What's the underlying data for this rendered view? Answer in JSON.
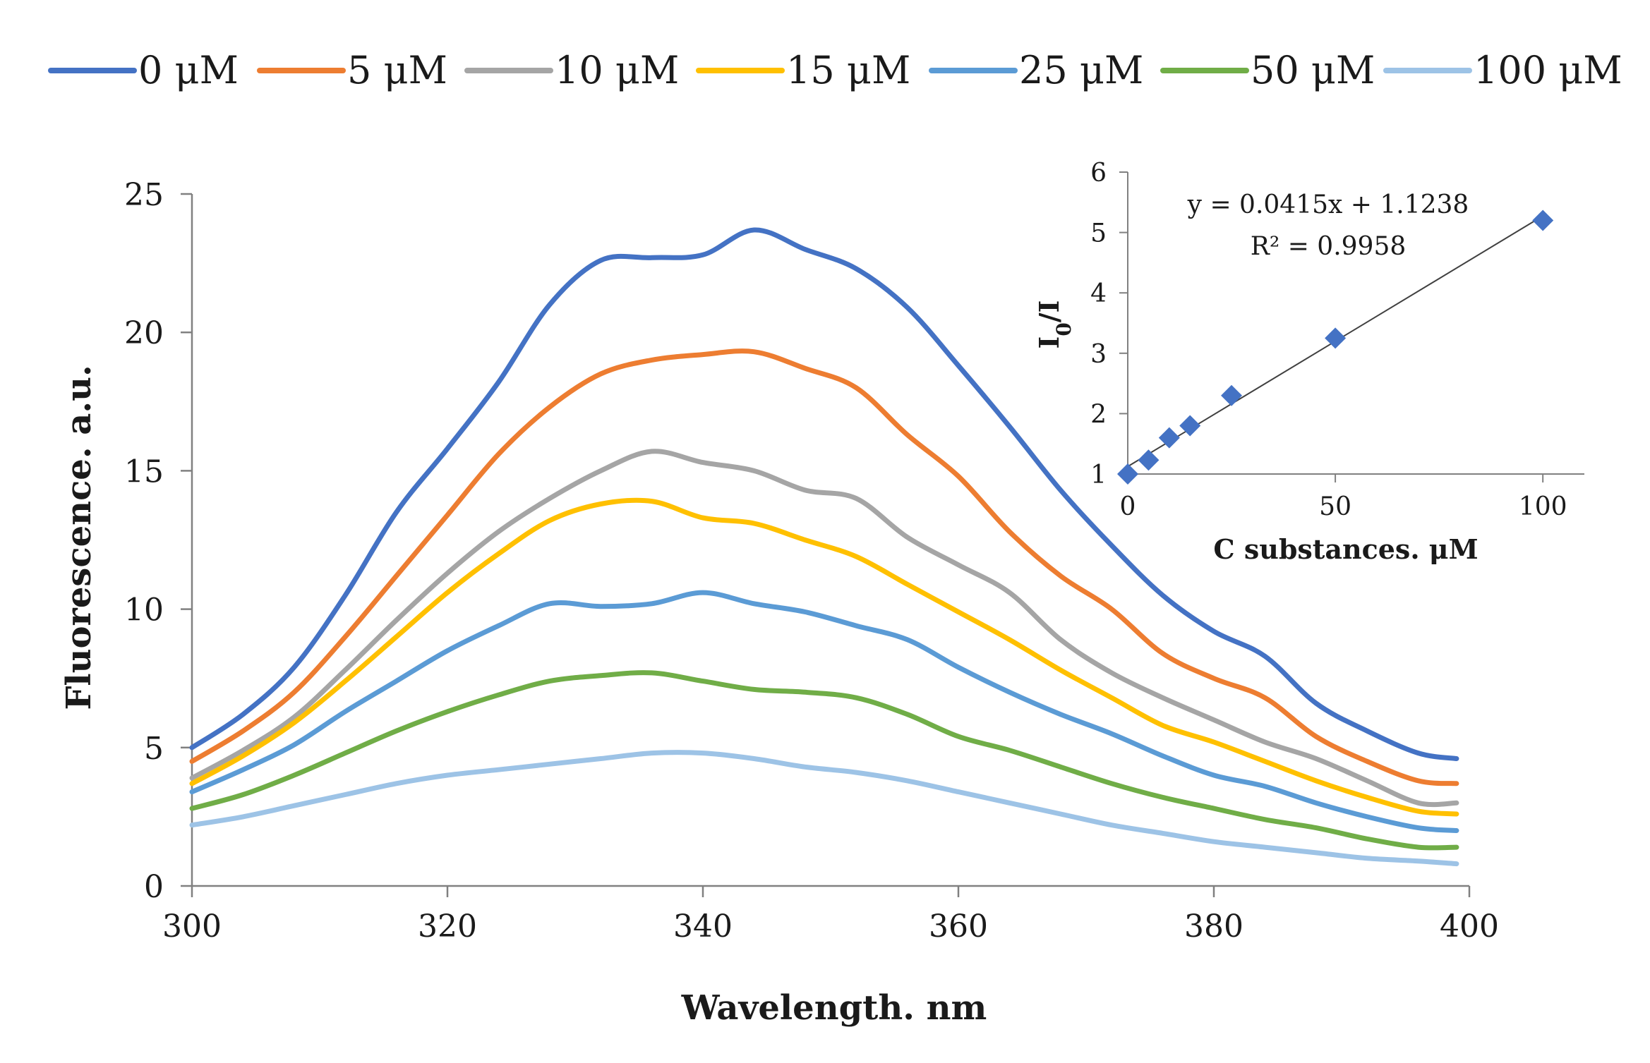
{
  "chart_data": [
    {
      "type": "line",
      "title": "",
      "xlabel": "Wavelength. nm",
      "ylabel": "Fluorescence. a.u.",
      "xlim": [
        300,
        400
      ],
      "ylim": [
        0,
        25
      ],
      "xticks": [
        "300",
        "320",
        "340",
        "360",
        "380",
        "400"
      ],
      "yticks": [
        "0",
        "5",
        "10",
        "15",
        "20",
        "25"
      ],
      "grid": false,
      "legend_position": "top",
      "x": [
        300,
        304,
        308,
        312,
        316,
        320,
        324,
        328,
        332,
        336,
        340,
        344,
        348,
        352,
        356,
        360,
        364,
        368,
        372,
        376,
        380,
        384,
        388,
        392,
        396,
        399
      ],
      "series": [
        {
          "name": "0 μM",
          "color": "#4472C4",
          "values": [
            5.0,
            6.2,
            7.9,
            10.5,
            13.5,
            15.8,
            18.2,
            21.0,
            22.6,
            22.7,
            22.8,
            23.7,
            23.0,
            22.3,
            20.9,
            18.8,
            16.6,
            14.3,
            12.3,
            10.5,
            9.2,
            8.3,
            6.6,
            5.6,
            4.8,
            4.6
          ]
        },
        {
          "name": "5 μM",
          "color": "#ED7D31",
          "values": [
            4.5,
            5.6,
            7.0,
            9.0,
            11.2,
            13.4,
            15.6,
            17.3,
            18.5,
            19.0,
            19.2,
            19.3,
            18.7,
            18.0,
            16.3,
            14.8,
            12.8,
            11.2,
            10.0,
            8.4,
            7.5,
            6.8,
            5.4,
            4.5,
            3.8,
            3.7
          ]
        },
        {
          "name": "10 μM",
          "color": "#A5A5A5",
          "values": [
            3.9,
            4.9,
            6.1,
            7.8,
            9.6,
            11.3,
            12.8,
            14.0,
            15.0,
            15.7,
            15.3,
            15.0,
            14.3,
            14.0,
            12.6,
            11.6,
            10.6,
            8.9,
            7.7,
            6.8,
            6.0,
            5.2,
            4.6,
            3.8,
            3.0,
            3.0
          ]
        },
        {
          "name": "15 μM",
          "color": "#FFC000",
          "values": [
            3.7,
            4.7,
            5.9,
            7.4,
            9.0,
            10.6,
            12.0,
            13.2,
            13.8,
            13.9,
            13.3,
            13.1,
            12.5,
            11.9,
            10.9,
            9.9,
            8.9,
            7.8,
            6.8,
            5.8,
            5.2,
            4.5,
            3.8,
            3.2,
            2.7,
            2.6
          ]
        },
        {
          "name": "25 μM",
          "color": "#5B9BD5",
          "values": [
            3.4,
            4.2,
            5.1,
            6.3,
            7.4,
            8.5,
            9.4,
            10.2,
            10.1,
            10.2,
            10.6,
            10.2,
            9.9,
            9.4,
            8.9,
            7.9,
            7.0,
            6.2,
            5.5,
            4.7,
            4.0,
            3.6,
            3.0,
            2.5,
            2.1,
            2.0
          ]
        },
        {
          "name": "50 μM",
          "color": "#70AD47",
          "values": [
            2.8,
            3.3,
            4.0,
            4.8,
            5.6,
            6.3,
            6.9,
            7.4,
            7.6,
            7.7,
            7.4,
            7.1,
            7.0,
            6.8,
            6.2,
            5.4,
            4.9,
            4.3,
            3.7,
            3.2,
            2.8,
            2.4,
            2.1,
            1.7,
            1.4,
            1.4
          ]
        },
        {
          "name": "100 μM",
          "color": "#9DC3E6",
          "values": [
            2.2,
            2.5,
            2.9,
            3.3,
            3.7,
            4.0,
            4.2,
            4.4,
            4.6,
            4.8,
            4.8,
            4.6,
            4.3,
            4.1,
            3.8,
            3.4,
            3.0,
            2.6,
            2.2,
            1.9,
            1.6,
            1.4,
            1.2,
            1.0,
            0.9,
            0.8
          ]
        }
      ]
    },
    {
      "type": "scatter",
      "title": "",
      "xlabel": "C substances. μM",
      "ylabel": "I0/I",
      "xlim": [
        0,
        110
      ],
      "ylim": [
        1,
        6
      ],
      "xticks": [
        "0",
        "50",
        "100"
      ],
      "yticks": [
        "1",
        "2",
        "3",
        "4",
        "5",
        "6"
      ],
      "grid": false,
      "marker": "diamond",
      "marker_color": "#4472C4",
      "points": [
        {
          "x": 0,
          "y": 1.0
        },
        {
          "x": 5,
          "y": 1.23
        },
        {
          "x": 10,
          "y": 1.6
        },
        {
          "x": 15,
          "y": 1.8
        },
        {
          "x": 25,
          "y": 2.3
        },
        {
          "x": 50,
          "y": 3.25
        },
        {
          "x": 100,
          "y": 5.2
        }
      ],
      "trendline": {
        "slope": 0.0415,
        "intercept": 1.1238,
        "x_range": [
          0,
          100
        ],
        "color": "#404040"
      },
      "equation": "y = 0.0415x + 1.1238",
      "r_squared": "R² = 0.9958"
    }
  ]
}
